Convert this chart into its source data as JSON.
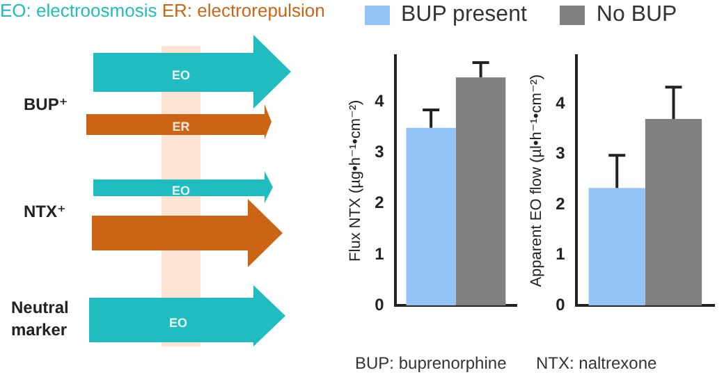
{
  "chart_data": [
    {
      "type": "other",
      "annotations": [
        "EO: electroosmosis",
        "ER: electrorepulsion",
        "BUP⁺",
        "NTX⁺",
        "Neutral marker",
        "EO",
        "ER",
        "EO",
        "EO"
      ]
    },
    {
      "type": "bar",
      "ylabel": "Flux NTX (µg•h⁻¹•cm⁻²)",
      "categories": [
        null
      ],
      "legend": "top",
      "series": [
        {
          "name": "BUP present",
          "color": "#94c4f5",
          "values": [
            3.49
          ],
          "errors": [
            [
              3.49,
              3.84
            ]
          ]
        },
        {
          "name": "No BUP",
          "color": "#808080",
          "values": [
            4.48
          ],
          "errors": [
            [
              4.48,
              4.77
            ]
          ]
        }
      ],
      "ylim": [
        0,
        4.9
      ],
      "yticks": [
        0,
        1,
        2,
        3,
        4
      ],
      "grid": false,
      "annotations": [
        "BUP: buprenorphine"
      ]
    },
    {
      "type": "bar",
      "ylabel": "Apparent EO flow (µl•h⁻¹•cm⁻²)",
      "categories": [
        null
      ],
      "series": [
        {
          "color": "#94c4f5",
          "values": [
            2.33
          ],
          "errors": [
            [
              2.33,
              2.98
            ]
          ]
        },
        {
          "color": "#808080",
          "values": [
            3.7
          ],
          "errors": [
            [
              3.7,
              4.33
            ]
          ]
        }
      ],
      "ylim": [
        0,
        4.95
      ],
      "yticks": [
        0,
        1,
        2,
        3,
        4
      ],
      "grid": false,
      "annotations": [
        "NTX: naltrexone"
      ]
    }
  ]
}
